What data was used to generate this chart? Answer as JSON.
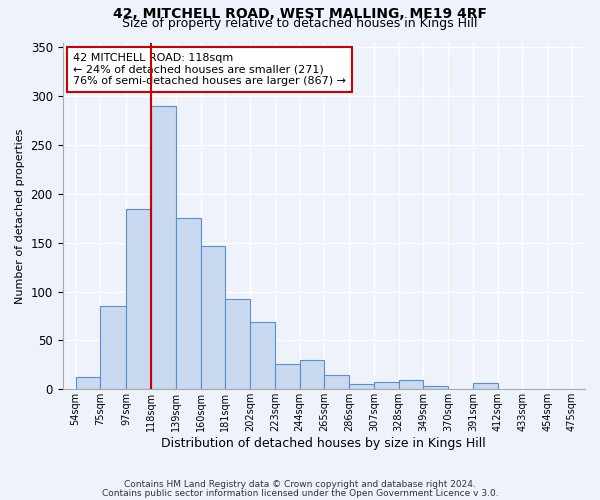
{
  "title1": "42, MITCHELL ROAD, WEST MALLING, ME19 4RF",
  "title2": "Size of property relative to detached houses in Kings Hill",
  "xlabel": "Distribution of detached houses by size in Kings Hill",
  "ylabel": "Number of detached properties",
  "footer1": "Contains HM Land Registry data © Crown copyright and database right 2024.",
  "footer2": "Contains public sector information licensed under the Open Government Licence v 3.0.",
  "annotation_title": "42 MITCHELL ROAD: 118sqm",
  "annotation_line2": "← 24% of detached houses are smaller (271)",
  "annotation_line3": "76% of semi-detached houses are larger (867) →",
  "bin_edges": [
    54,
    75,
    97,
    118,
    139,
    160,
    181,
    202,
    223,
    244,
    265,
    286,
    307,
    328,
    349,
    370,
    391,
    412,
    433,
    454,
    475
  ],
  "bar_heights": [
    13,
    85,
    185,
    290,
    175,
    147,
    92,
    69,
    26,
    30,
    15,
    5,
    7,
    10,
    3,
    0,
    6,
    0,
    0,
    0
  ],
  "x_tick_labels": [
    "54sqm",
    "75sqm",
    "97sqm",
    "118sqm",
    "139sqm",
    "160sqm",
    "181sqm",
    "202sqm",
    "223sqm",
    "244sqm",
    "265sqm",
    "286sqm",
    "307sqm",
    "328sqm",
    "349sqm",
    "370sqm",
    "391sqm",
    "412sqm",
    "433sqm",
    "454sqm",
    "475sqm"
  ],
  "ylim": [
    0,
    355
  ],
  "xlim": [
    43,
    486
  ],
  "vline_x": 118,
  "bar_fill_color": "#c9d9f0",
  "bar_edge_color": "#5b8fcc",
  "background_color": "#eef2fa",
  "grid_color": "#ffffff",
  "vline_color": "#cc0000",
  "annotation_box_edge_color": "#cc0000",
  "annotation_box_fill": "#ffffff"
}
